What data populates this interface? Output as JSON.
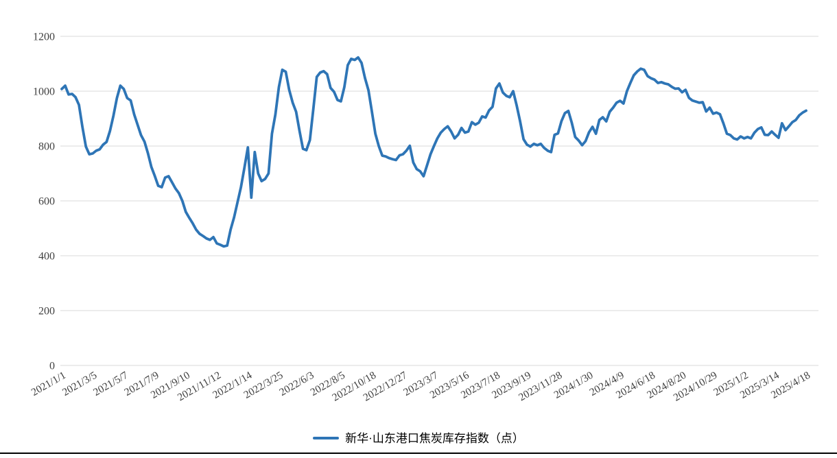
{
  "chart": {
    "background": "#FFFFFF",
    "line_color": "#2E75B6",
    "gridline_color": "#D9D9D9",
    "tick_label_color": "#3F3F3F",
    "legend_text_color": "#000000",
    "bottom_rule_color": "#000000"
  },
  "legend": {
    "label": "新华·山东港口焦炭库存指数（点）"
  },
  "chart_data": {
    "type": "line",
    "title": "",
    "xlabel": "",
    "ylabel": "",
    "ylim": [
      0,
      1200
    ],
    "y_ticks": [
      0,
      200,
      400,
      600,
      800,
      1000,
      1200
    ],
    "grid": "horizontal-only",
    "legend_position": "bottom-center",
    "x_tick_labels": [
      "2021/1/1",
      "2021/3/5",
      "2021/5/7",
      "2021/7/9",
      "2021/9/10",
      "2021/11/12",
      "2022/1/14",
      "2022/3/25",
      "2022/6/3",
      "2022/8/5",
      "2022/10/18",
      "2022/12/27",
      "2023/3/7",
      "2023/5/16",
      "2023/7/18",
      "2023/9/19",
      "2023/11/28",
      "2024/1/30",
      "2024/4/9",
      "2024/6/18",
      "2024/8/20",
      "2024/10/29",
      "2025/1/2",
      "2025/3/14",
      "2025/4/18"
    ],
    "x_ticks_every_n_points": 9,
    "series": [
      {
        "name": "新华·山东港口焦炭库存指数（点）",
        "color": "#2E75B6",
        "values": [
          1008,
          1020,
          988,
          990,
          978,
          950,
          870,
          798,
          770,
          773,
          783,
          788,
          805,
          815,
          855,
          910,
          975,
          1020,
          1008,
          975,
          966,
          916,
          878,
          840,
          816,
          774,
          724,
          691,
          655,
          650,
          685,
          690,
          668,
          645,
          628,
          600,
          560,
          538,
          518,
          495,
          480,
          472,
          463,
          458,
          468,
          445,
          440,
          434,
          437,
          495,
          540,
          595,
          650,
          720,
          795,
          612,
          778,
          700,
          672,
          680,
          700,
          845,
          915,
          1015,
          1078,
          1071,
          1005,
          958,
          925,
          855,
          790,
          785,
          822,
          935,
          1052,
          1068,
          1073,
          1062,
          1012,
          998,
          968,
          963,
          1015,
          1095,
          1118,
          1114,
          1123,
          1103,
          1048,
          1003,
          925,
          845,
          800,
          765,
          762,
          756,
          752,
          749,
          766,
          770,
          783,
          801,
          740,
          716,
          708,
          690,
          730,
          770,
          800,
          828,
          849,
          862,
          872,
          853,
          828,
          841,
          866,
          849,
          853,
          887,
          878,
          885,
          908,
          904,
          930,
          943,
          1010,
          1028,
          995,
          983,
          978,
          1000,
          948,
          890,
          825,
          805,
          798,
          808,
          803,
          808,
          793,
          783,
          778,
          841,
          846,
          891,
          920,
          928,
          885,
          833,
          820,
          803,
          818,
          850,
          870,
          845,
          895,
          905,
          890,
          925,
          940,
          958,
          965,
          955,
          1000,
          1030,
          1058,
          1072,
          1082,
          1078,
          1055,
          1047,
          1042,
          1030,
          1033,
          1028,
          1025,
          1016,
          1009,
          1010,
          996,
          1005,
          976,
          966,
          962,
          958,
          960,
          926,
          940,
          918,
          922,
          916,
          883,
          845,
          840,
          828,
          824,
          835,
          828,
          833,
          828,
          849,
          862,
          868,
          841,
          840,
          853,
          841,
          830,
          883,
          858,
          872,
          887,
          895,
          912,
          922,
          929
        ]
      }
    ]
  }
}
